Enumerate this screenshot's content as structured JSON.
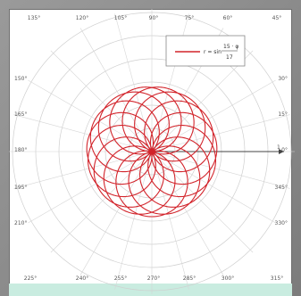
{
  "chart_data": {
    "type": "polar-line",
    "function": "rose-curve",
    "radial_ticks_shown": false,
    "angle_labels": [
      "0°",
      "30°",
      "60°",
      "90°",
      "120°",
      "150°",
      "180°",
      "210°",
      "240°",
      "270°",
      "300°",
      "330°"
    ],
    "top_labels": [
      "135°",
      "120°",
      "105°",
      "90°",
      "75°",
      "60°",
      "45°"
    ],
    "left_labels": [
      "150°",
      "165°",
      "180°",
      "195°",
      "210°"
    ],
    "right_labels": [
      "30°",
      "15°",
      "0°",
      "345°",
      "330°"
    ],
    "bottom_labels": [
      "225°",
      "240°",
      "255°",
      "270°",
      "285°",
      "300°",
      "315°"
    ],
    "axis_marker": "1",
    "legend": {
      "prefix": "r = sin",
      "numerator": "15 · φ",
      "denominator": "17"
    },
    "series": [
      {
        "color": "#d2232a",
        "k_numerator": 15,
        "k_denominator": 17,
        "theta_range_turns": 34
      }
    ],
    "grid": true
  }
}
